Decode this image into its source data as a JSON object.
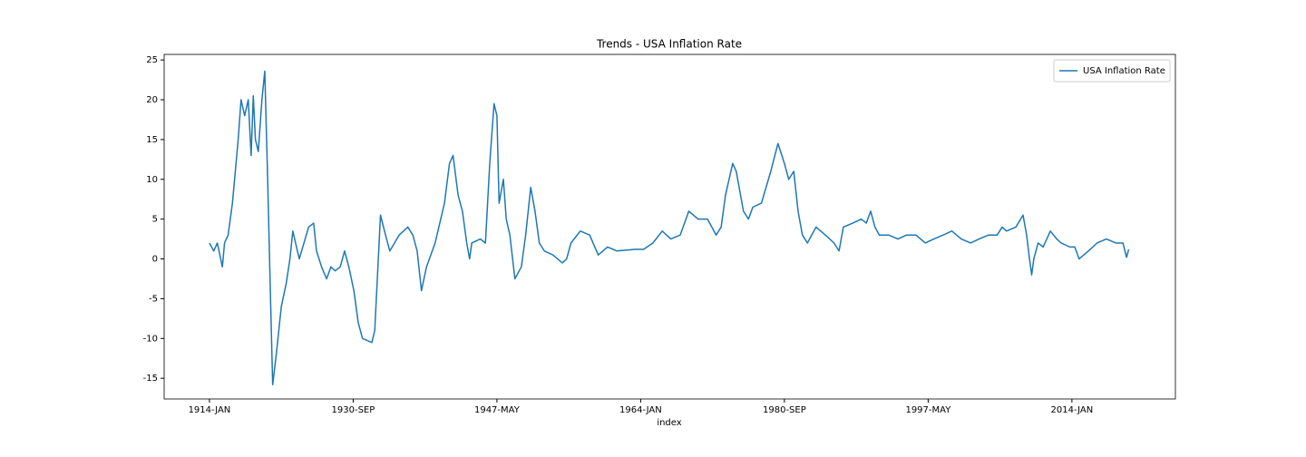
{
  "chart_data": {
    "type": "line",
    "title": "Trends - USA Inflation Rate",
    "x_label": "index",
    "x": [
      0,
      6,
      11,
      18,
      21,
      26,
      32,
      37,
      40,
      44,
      49,
      54,
      58,
      61,
      64,
      68,
      73,
      77,
      81,
      85,
      88,
      93,
      100,
      107,
      112,
      116,
      125,
      138,
      145,
      149,
      156,
      163,
      169,
      175,
      182,
      188,
      194,
      201,
      207,
      213,
      226,
      230,
      238,
      245,
      251,
      264,
      276,
      283,
      289,
      295,
      302,
      314,
      327,
      334,
      339,
      346,
      352,
      358,
      362,
      365,
      377,
      384,
      390,
      396,
      400,
      403,
      409,
      413,
      418,
      425,
      434,
      440,
      447,
      453,
      459,
      466,
      478,
      491,
      497,
      503,
      516,
      529,
      541,
      554,
      567,
      592,
      604,
      617,
      630,
      642,
      655,
      667,
      680,
      693,
      705,
      712,
      718,
      728,
      733,
      743,
      750,
      756,
      768,
      781,
      791,
      800,
      806,
      813,
      819,
      825,
      832,
      844,
      857,
      869,
      876,
      882,
      895,
      907,
      914,
      920,
      926,
      932,
      945,
      958,
      970,
      983,
      996,
      1008,
      1021,
      1033,
      1046,
      1059,
      1071,
      1084,
      1096,
      1103,
      1109,
      1122,
      1132,
      1137,
      1141,
      1144,
      1147,
      1153,
      1160,
      1170,
      1179,
      1185,
      1197,
      1204,
      1210,
      1223,
      1235,
      1248,
      1261,
      1271,
      1276,
      1279
    ],
    "series": [
      {
        "name": "USA Inflation Rate",
        "color": "#1f77b4",
        "values": [
          2,
          1,
          2,
          -1,
          2,
          3,
          7,
          12,
          15,
          20,
          18,
          20,
          13,
          20.5,
          15,
          13.5,
          20,
          23.6,
          10,
          -5,
          -15.8,
          -12,
          -6,
          -3,
          0,
          3.5,
          0,
          4,
          4.5,
          1,
          -1,
          -2.5,
          -1,
          -1.5,
          -1,
          1,
          -1,
          -4,
          -8,
          -10,
          -10.5,
          -9,
          5.5,
          3,
          1,
          3,
          4,
          3,
          1,
          -4,
          -1,
          2,
          7,
          12,
          13,
          8,
          6,
          2,
          0,
          2,
          2.5,
          2,
          12,
          19.5,
          18,
          7,
          10,
          5,
          3,
          -2.5,
          -1,
          3,
          9,
          6,
          2,
          1,
          0.5,
          -0.5,
          0,
          2,
          3.5,
          3,
          0.5,
          1.5,
          1,
          1.2,
          1.2,
          2,
          3.5,
          2.5,
          3,
          6,
          5,
          5,
          3,
          4,
          8,
          12,
          11,
          6,
          5,
          6.5,
          7,
          11,
          14.5,
          12,
          10,
          11,
          6,
          3,
          2,
          4,
          3,
          2,
          1,
          4,
          4.5,
          5,
          4.5,
          6,
          4,
          3,
          3,
          2.5,
          3,
          3,
          2,
          2.5,
          3,
          3.5,
          2.5,
          2,
          2.5,
          3,
          3,
          4,
          3.5,
          4,
          5.5,
          3,
          0,
          -2,
          0,
          2,
          1.5,
          3.5,
          2.5,
          2,
          1.5,
          1.5,
          0,
          1,
          2,
          2.5,
          2,
          2,
          0.2,
          1.2
        ]
      }
    ],
    "xlim": [
      -63,
      1344
    ],
    "xticks": [
      {
        "value": 0,
        "label": "1914-JAN"
      },
      {
        "value": 200,
        "label": "1930-SEP"
      },
      {
        "value": 400,
        "label": "1947-MAY"
      },
      {
        "value": 600,
        "label": "1964-JAN"
      },
      {
        "value": 800,
        "label": "1980-SEP"
      },
      {
        "value": 1000,
        "label": "1997-MAY"
      },
      {
        "value": 1200,
        "label": "2014-JAN"
      }
    ],
    "ylim": [
      -17.6,
      25.7
    ],
    "yticks": [
      -15,
      -10,
      -5,
      0,
      5,
      10,
      15,
      20,
      25
    ],
    "grid": false,
    "legend": "upper right"
  }
}
